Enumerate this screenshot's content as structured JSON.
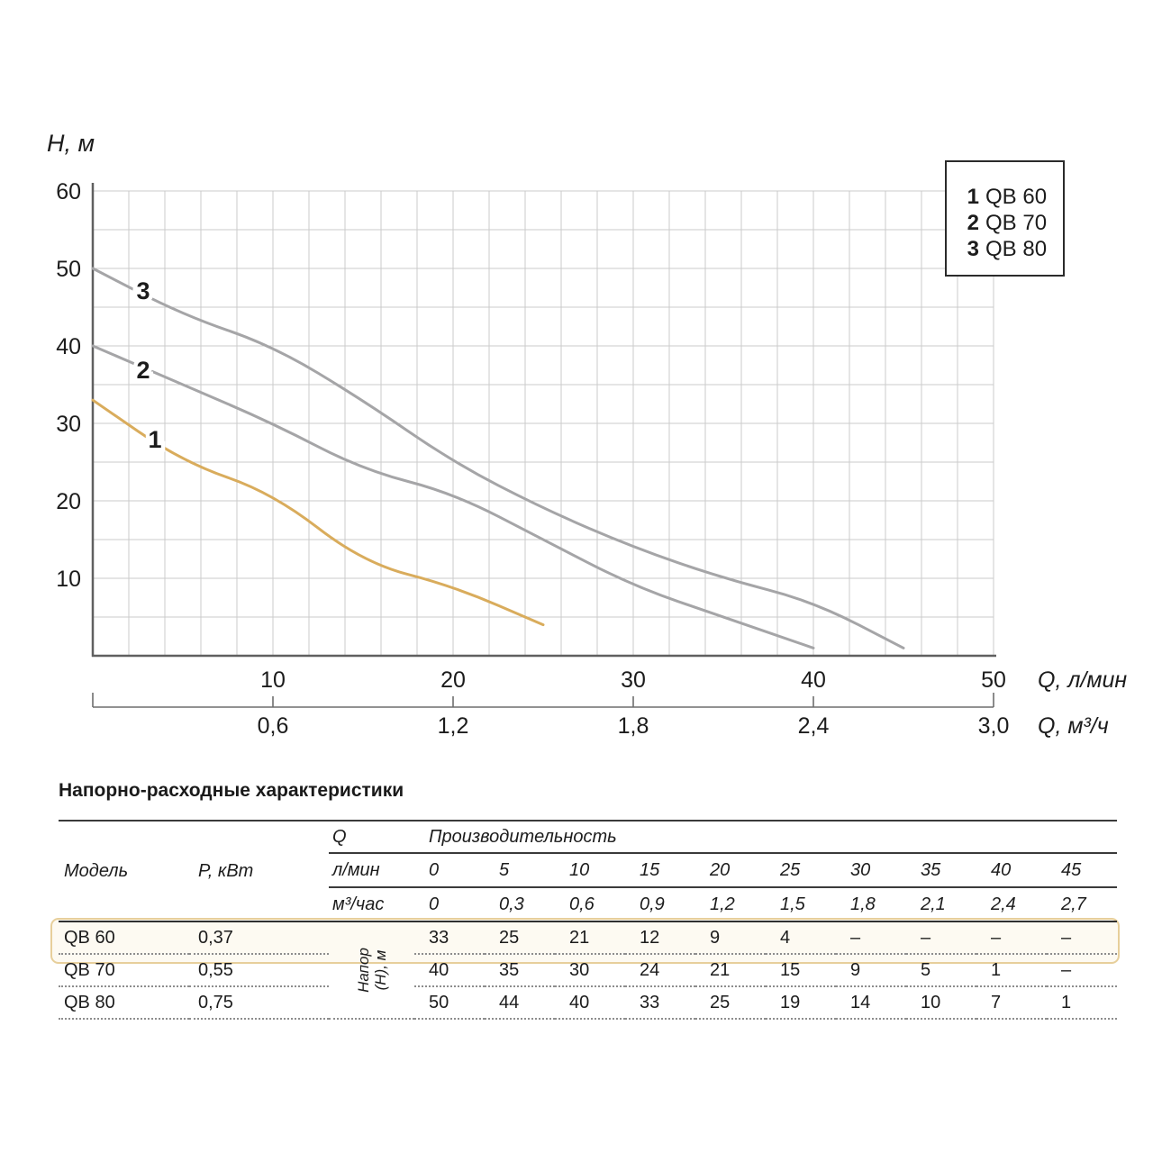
{
  "chart": {
    "ylabel": "H, м",
    "xlabel_primary": "Q, л/мин",
    "xlabel_secondary": "Q, м³/ч",
    "y_ticks": [
      "60",
      "50",
      "40",
      "30",
      "20",
      "10"
    ],
    "x_ticks_primary": [
      "10",
      "20",
      "30",
      "40",
      "50"
    ],
    "x_ticks_secondary": [
      "0,6",
      "1,2",
      "1,8",
      "2,4",
      "3,0"
    ],
    "colors": {
      "accent_orange": "#d9ac5c",
      "curve_gray": "#a5a5a7",
      "grid": "#cbcbcb",
      "axis": "#606060"
    },
    "legend": {
      "items": [
        {
          "num": "1",
          "label": "QB 60",
          "color": "#d9ac5c"
        },
        {
          "num": "2",
          "label": "QB 70",
          "color": "#a5a5a7"
        },
        {
          "num": "3",
          "label": "QB 80",
          "color": "#a5a5a7"
        }
      ]
    }
  },
  "chart_data": {
    "type": "line",
    "title": "Напорно-расходные характеристики",
    "xlabel": "Q, л/мин (верхняя шкала) / Q, м³/ч (нижняя шкала)",
    "ylabel": "H, м",
    "xlim": [
      0,
      50
    ],
    "ylim": [
      0,
      60
    ],
    "grid": {
      "on": true,
      "x_step": 2,
      "y_step": 5
    },
    "legend_position": "top-right",
    "series": [
      {
        "name": "QB 60",
        "marker": "1",
        "color": "#d9ac5c",
        "x": [
          0,
          5,
          10,
          15,
          20,
          25
        ],
        "y": [
          33,
          25,
          21,
          12,
          9,
          4
        ]
      },
      {
        "name": "QB 70",
        "marker": "2",
        "color": "#a5a5a7",
        "x": [
          0,
          5,
          10,
          15,
          20,
          25,
          30,
          35,
          40
        ],
        "y": [
          40,
          35,
          30,
          24,
          21,
          15,
          9,
          5,
          1
        ]
      },
      {
        "name": "QB 80",
        "marker": "3",
        "color": "#a5a5a7",
        "x": [
          0,
          5,
          10,
          15,
          20,
          25,
          30,
          35,
          40,
          45
        ],
        "y": [
          50,
          44,
          40,
          33,
          25,
          19,
          14,
          10,
          7,
          1
        ]
      }
    ]
  },
  "table": {
    "title": "Напорно-расходные характеристики",
    "col_model": "Модель",
    "col_power": "P, кВт",
    "col_q": "Q",
    "col_productivity": "Производительность",
    "row_lmin": {
      "label": "л/мин",
      "values": [
        "0",
        "5",
        "10",
        "15",
        "20",
        "25",
        "30",
        "35",
        "40",
        "45"
      ]
    },
    "row_m3h": {
      "label": "м³/час",
      "values": [
        "0",
        "0,3",
        "0,6",
        "0,9",
        "1,2",
        "1,5",
        "1,8",
        "2,1",
        "2,4",
        "2,7"
      ]
    },
    "head_label": "Напор (H), м",
    "head_label_lines": [
      "Напор",
      "(H), м"
    ],
    "highlight_color": "#e7cf9b",
    "rows": [
      {
        "model": "QB 60",
        "power": "0,37",
        "highlighted": true,
        "values": [
          "33",
          "25",
          "21",
          "12",
          "9",
          "4",
          "–",
          "–",
          "–",
          "–"
        ]
      },
      {
        "model": "QB 70",
        "power": "0,55",
        "highlighted": false,
        "values": [
          "40",
          "35",
          "30",
          "24",
          "21",
          "15",
          "9",
          "5",
          "1",
          "–"
        ]
      },
      {
        "model": "QB 80",
        "power": "0,75",
        "highlighted": false,
        "values": [
          "50",
          "44",
          "40",
          "33",
          "25",
          "19",
          "14",
          "10",
          "7",
          "1"
        ]
      }
    ]
  }
}
